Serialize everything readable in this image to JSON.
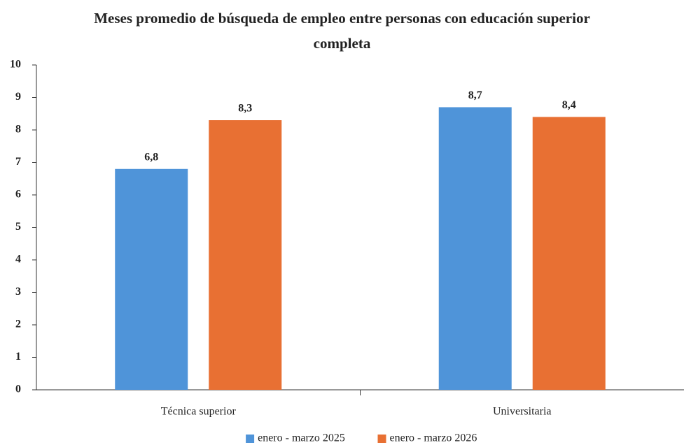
{
  "chart_data": {
    "type": "bar",
    "title": "Meses promedio de búsqueda de empleo entre personas con educación superior completa",
    "categories": [
      "Técnica superior",
      "Universitaria"
    ],
    "series": [
      {
        "name": "enero - marzo 2025",
        "color": "#4f94d9",
        "values": [
          6.8,
          8.7
        ],
        "value_labels": [
          "6,8",
          "8,7"
        ]
      },
      {
        "name": "enero - marzo 2026",
        "color": "#e87033",
        "values": [
          8.3,
          8.4
        ],
        "value_labels": [
          "8,3",
          "8,4"
        ]
      }
    ],
    "ylim": [
      0,
      10
    ],
    "yticks": [
      0,
      1,
      2,
      3,
      4,
      5,
      6,
      7,
      8,
      9,
      10
    ],
    "grid": false,
    "legend": "bottom"
  }
}
